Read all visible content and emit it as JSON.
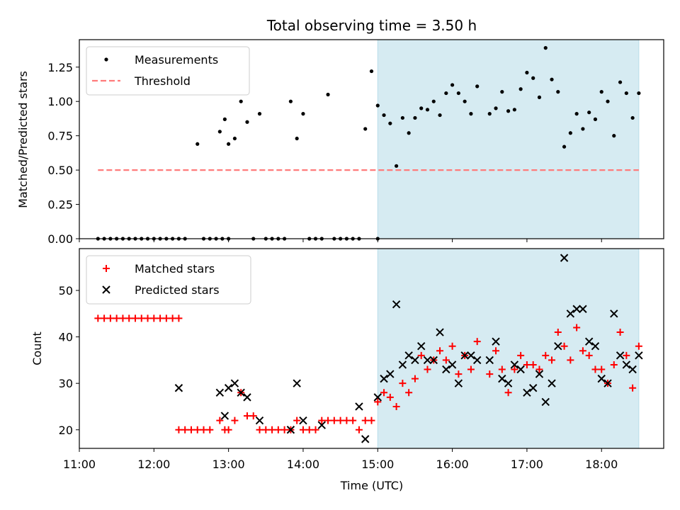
{
  "chart_data": [
    {
      "type": "scatter",
      "title": "Total observing time = 3.50 h",
      "xlabel": "",
      "ylabel": "Matched/Predicted stars",
      "xlim": [
        "11:00",
        "18:50"
      ],
      "ylim": [
        0,
        1.45
      ],
      "y_ticks": [
        "0.00",
        "0.25",
        "0.50",
        "0.75",
        "1.00",
        "1.25"
      ],
      "shaded_span": [
        "15:00",
        "18:30"
      ],
      "shade_color": "#add8e6",
      "grid": false,
      "legend_position": "upper-left",
      "series": [
        {
          "name": "Measurements",
          "marker": "dot",
          "color": "#000000",
          "points": [
            [
              "11:15",
              0
            ],
            [
              "11:20",
              0
            ],
            [
              "11:25",
              0
            ],
            [
              "11:30",
              0
            ],
            [
              "11:35",
              0
            ],
            [
              "11:40",
              0
            ],
            [
              "11:45",
              0
            ],
            [
              "11:50",
              0
            ],
            [
              "11:55",
              0
            ],
            [
              "12:00",
              0
            ],
            [
              "12:05",
              0
            ],
            [
              "12:10",
              0
            ],
            [
              "12:15",
              0
            ],
            [
              "12:20",
              0
            ],
            [
              "12:25",
              0
            ],
            [
              "12:35",
              0.69
            ],
            [
              "12:40",
              0
            ],
            [
              "12:45",
              0
            ],
            [
              "12:50",
              0
            ],
            [
              "12:55",
              0
            ],
            [
              "13:00",
              0
            ],
            [
              "12:53",
              0.78
            ],
            [
              "12:57",
              0.87
            ],
            [
              "13:00",
              0.69
            ],
            [
              "13:05",
              0.73
            ],
            [
              "13:10",
              1.0
            ],
            [
              "13:15",
              0.85
            ],
            [
              "13:20",
              0
            ],
            [
              "13:25",
              0.91
            ],
            [
              "13:30",
              0
            ],
            [
              "13:35",
              0
            ],
            [
              "13:40",
              0
            ],
            [
              "13:45",
              0
            ],
            [
              "13:50",
              1.0
            ],
            [
              "13:55",
              0.73
            ],
            [
              "14:00",
              0.91
            ],
            [
              "14:05",
              0
            ],
            [
              "14:10",
              0
            ],
            [
              "14:15",
              0
            ],
            [
              "14:20",
              1.05
            ],
            [
              "14:25",
              0
            ],
            [
              "14:30",
              0
            ],
            [
              "14:35",
              0
            ],
            [
              "14:40",
              0
            ],
            [
              "14:45",
              0
            ],
            [
              "14:50",
              0.8
            ],
            [
              "14:55",
              1.22
            ],
            [
              "15:00",
              0
            ],
            [
              "15:00",
              0.97
            ],
            [
              "15:05",
              0.9
            ],
            [
              "15:10",
              0.84
            ],
            [
              "15:15",
              0.53
            ],
            [
              "15:20",
              0.88
            ],
            [
              "15:25",
              0.77
            ],
            [
              "15:30",
              0.88
            ],
            [
              "15:35",
              0.95
            ],
            [
              "15:40",
              0.94
            ],
            [
              "15:45",
              1.0
            ],
            [
              "15:50",
              0.9
            ],
            [
              "15:55",
              1.06
            ],
            [
              "16:00",
              1.12
            ],
            [
              "16:05",
              1.06
            ],
            [
              "16:10",
              1.0
            ],
            [
              "16:15",
              0.91
            ],
            [
              "16:20",
              1.11
            ],
            [
              "16:30",
              0.91
            ],
            [
              "16:35",
              0.95
            ],
            [
              "16:40",
              1.07
            ],
            [
              "16:45",
              0.93
            ],
            [
              "16:50",
              0.94
            ],
            [
              "16:55",
              1.09
            ],
            [
              "17:00",
              1.21
            ],
            [
              "17:05",
              1.17
            ],
            [
              "17:10",
              1.03
            ],
            [
              "17:15",
              1.39
            ],
            [
              "17:20",
              1.16
            ],
            [
              "17:25",
              1.07
            ],
            [
              "17:30",
              0.67
            ],
            [
              "17:35",
              0.77
            ],
            [
              "17:40",
              0.91
            ],
            [
              "17:45",
              0.8
            ],
            [
              "17:50",
              0.92
            ],
            [
              "17:55",
              0.87
            ],
            [
              "18:00",
              1.07
            ],
            [
              "18:05",
              1.0
            ],
            [
              "18:10",
              0.75
            ],
            [
              "18:15",
              1.14
            ],
            [
              "18:20",
              1.06
            ],
            [
              "18:25",
              0.88
            ],
            [
              "18:30",
              1.06
            ]
          ]
        },
        {
          "name": "Threshold",
          "marker": "dashed-line",
          "color": "#ff7b7b",
          "points": [
            [
              "11:15",
              0.5
            ],
            [
              "18:30",
              0.5
            ]
          ]
        }
      ]
    },
    {
      "type": "scatter",
      "title": "",
      "xlabel": "Time (UTC)",
      "ylabel": "Count",
      "xlim": [
        "11:00",
        "18:50"
      ],
      "ylim": [
        16,
        59
      ],
      "y_ticks": [
        "20",
        "30",
        "40",
        "50"
      ],
      "x_ticks": [
        "11:00",
        "12:00",
        "13:00",
        "14:00",
        "15:00",
        "16:00",
        "17:00",
        "18:00"
      ],
      "shaded_span": [
        "15:00",
        "18:30"
      ],
      "shade_color": "#add8e6",
      "grid": false,
      "legend_position": "upper-left",
      "series": [
        {
          "name": "Matched stars",
          "marker": "plus",
          "color": "#ff0000",
          "points": [
            [
              "11:15",
              44
            ],
            [
              "11:20",
              44
            ],
            [
              "11:25",
              44
            ],
            [
              "11:30",
              44
            ],
            [
              "11:35",
              44
            ],
            [
              "11:40",
              44
            ],
            [
              "11:45",
              44
            ],
            [
              "11:50",
              44
            ],
            [
              "11:55",
              44
            ],
            [
              "12:00",
              44
            ],
            [
              "12:05",
              44
            ],
            [
              "12:10",
              44
            ],
            [
              "12:15",
              44
            ],
            [
              "12:20",
              44
            ],
            [
              "12:20",
              20
            ],
            [
              "12:25",
              20
            ],
            [
              "12:30",
              20
            ],
            [
              "12:35",
              20
            ],
            [
              "12:40",
              20
            ],
            [
              "12:45",
              20
            ],
            [
              "12:53",
              22
            ],
            [
              "12:57",
              20
            ],
            [
              "13:00",
              20
            ],
            [
              "13:05",
              22
            ],
            [
              "13:10",
              28
            ],
            [
              "13:15",
              23
            ],
            [
              "13:20",
              23
            ],
            [
              "13:25",
              20
            ],
            [
              "13:30",
              20
            ],
            [
              "13:35",
              20
            ],
            [
              "13:40",
              20
            ],
            [
              "13:45",
              20
            ],
            [
              "13:50",
              20
            ],
            [
              "13:55",
              22
            ],
            [
              "14:00",
              20
            ],
            [
              "14:05",
              20
            ],
            [
              "14:10",
              20
            ],
            [
              "14:15",
              22
            ],
            [
              "14:20",
              22
            ],
            [
              "14:25",
              22
            ],
            [
              "14:30",
              22
            ],
            [
              "14:35",
              22
            ],
            [
              "14:40",
              22
            ],
            [
              "14:45",
              20
            ],
            [
              "14:50",
              22
            ],
            [
              "14:55",
              22
            ],
            [
              "15:00",
              26
            ],
            [
              "15:05",
              28
            ],
            [
              "15:10",
              27
            ],
            [
              "15:15",
              25
            ],
            [
              "15:20",
              30
            ],
            [
              "15:25",
              28
            ],
            [
              "15:30",
              31
            ],
            [
              "15:35",
              36
            ],
            [
              "15:40",
              33
            ],
            [
              "15:45",
              35
            ],
            [
              "15:50",
              37
            ],
            [
              "15:55",
              35
            ],
            [
              "16:00",
              38
            ],
            [
              "16:05",
              32
            ],
            [
              "16:10",
              36
            ],
            [
              "16:15",
              33
            ],
            [
              "16:20",
              39
            ],
            [
              "16:30",
              32
            ],
            [
              "16:35",
              37
            ],
            [
              "16:40",
              33
            ],
            [
              "16:45",
              28
            ],
            [
              "16:50",
              33
            ],
            [
              "16:55",
              36
            ],
            [
              "17:00",
              34
            ],
            [
              "17:05",
              34
            ],
            [
              "17:10",
              33
            ],
            [
              "17:15",
              36
            ],
            [
              "17:20",
              35
            ],
            [
              "17:25",
              41
            ],
            [
              "17:30",
              38
            ],
            [
              "17:35",
              35
            ],
            [
              "17:40",
              42
            ],
            [
              "17:45",
              37
            ],
            [
              "17:50",
              36
            ],
            [
              "17:55",
              33
            ],
            [
              "18:00",
              33
            ],
            [
              "18:05",
              30
            ],
            [
              "18:10",
              34
            ],
            [
              "18:15",
              41
            ],
            [
              "18:20",
              36
            ],
            [
              "18:25",
              29
            ],
            [
              "18:30",
              38
            ]
          ]
        },
        {
          "name": "Predicted stars",
          "marker": "x",
          "color": "#000000",
          "points": [
            [
              "12:20",
              29
            ],
            [
              "12:53",
              28
            ],
            [
              "12:57",
              23
            ],
            [
              "13:00",
              29
            ],
            [
              "13:05",
              30
            ],
            [
              "13:10",
              28
            ],
            [
              "13:15",
              27
            ],
            [
              "13:25",
              22
            ],
            [
              "13:50",
              20
            ],
            [
              "13:55",
              30
            ],
            [
              "14:00",
              22
            ],
            [
              "14:15",
              21
            ],
            [
              "14:45",
              25
            ],
            [
              "14:50",
              18
            ],
            [
              "15:00",
              27
            ],
            [
              "15:05",
              31
            ],
            [
              "15:10",
              32
            ],
            [
              "15:15",
              47
            ],
            [
              "15:20",
              34
            ],
            [
              "15:25",
              36
            ],
            [
              "15:30",
              35
            ],
            [
              "15:35",
              38
            ],
            [
              "15:40",
              35
            ],
            [
              "15:45",
              35
            ],
            [
              "15:50",
              41
            ],
            [
              "15:55",
              33
            ],
            [
              "16:00",
              34
            ],
            [
              "16:05",
              30
            ],
            [
              "16:10",
              36
            ],
            [
              "16:15",
              36
            ],
            [
              "16:20",
              35
            ],
            [
              "16:30",
              35
            ],
            [
              "16:35",
              39
            ],
            [
              "16:40",
              31
            ],
            [
              "16:45",
              30
            ],
            [
              "16:50",
              34
            ],
            [
              "16:55",
              33
            ],
            [
              "17:00",
              28
            ],
            [
              "17:05",
              29
            ],
            [
              "17:10",
              32
            ],
            [
              "17:15",
              26
            ],
            [
              "17:20",
              30
            ],
            [
              "17:25",
              38
            ],
            [
              "17:30",
              57
            ],
            [
              "17:35",
              45
            ],
            [
              "17:40",
              46
            ],
            [
              "17:45",
              46
            ],
            [
              "17:50",
              39
            ],
            [
              "17:55",
              38
            ],
            [
              "18:00",
              31
            ],
            [
              "18:05",
              30
            ],
            [
              "18:10",
              45
            ],
            [
              "18:15",
              36
            ],
            [
              "18:20",
              34
            ],
            [
              "18:25",
              33
            ],
            [
              "18:30",
              36
            ]
          ]
        }
      ]
    }
  ]
}
